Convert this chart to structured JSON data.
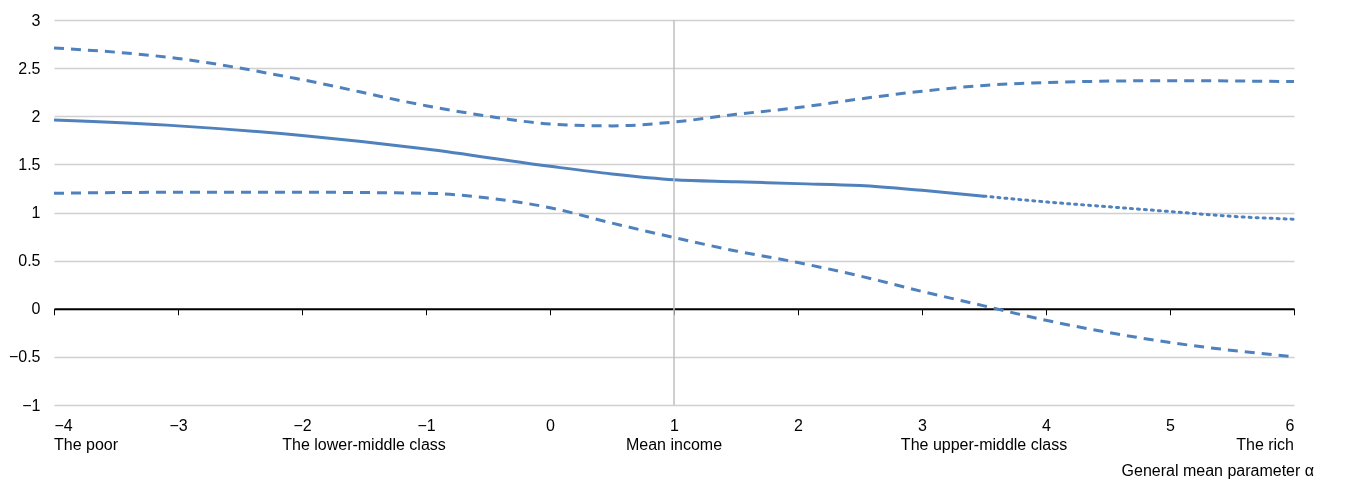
{
  "chart_data": {
    "type": "line",
    "xlabel": "General mean parameter α",
    "xlim": [
      -4,
      6
    ],
    "xticks": [
      -4,
      -3,
      -2,
      -1,
      0,
      1,
      2,
      3,
      4,
      5,
      6
    ],
    "ylim": [
      -1,
      3
    ],
    "yticks": [
      -1,
      -0.5,
      0,
      0.5,
      1,
      1.5,
      2,
      2.5,
      3
    ],
    "grid": "y",
    "marker": "none",
    "series": [
      {
        "color": "#4f81bd",
        "line_style": "solid",
        "x": [
          -4,
          -3,
          -2,
          -1,
          0,
          0.5,
          1,
          1.5,
          2,
          2.5,
          3,
          3.5
        ],
        "values": [
          1.96,
          1.9,
          1.8,
          1.66,
          1.48,
          1.4,
          1.34,
          1.32,
          1.3,
          1.28,
          1.23,
          1.17
        ]
      },
      {
        "color": "#4f81bd",
        "line_style": "dotted",
        "x": [
          3.5,
          4,
          4.5,
          5,
          5.5,
          6
        ],
        "values": [
          1.17,
          1.11,
          1.06,
          1.01,
          0.96,
          0.93
        ]
      },
      {
        "color": "#4f81bd",
        "line_style": "dashed",
        "x": [
          -4,
          -3,
          -2,
          -1,
          -0.5,
          0,
          0.5,
          1,
          1.5,
          2,
          2.5,
          3,
          3.5,
          4,
          5,
          6
        ],
        "values": [
          2.71,
          2.6,
          2.38,
          2.11,
          2.0,
          1.92,
          1.9,
          1.94,
          2.02,
          2.09,
          2.18,
          2.26,
          2.32,
          2.35,
          2.37,
          2.36
        ]
      },
      {
        "color": "#4f81bd",
        "line_style": "dashed",
        "x": [
          -4,
          -3,
          -2,
          -1,
          -0.5,
          0,
          0.5,
          1,
          1.5,
          2,
          2.5,
          3,
          3.5,
          4,
          5,
          6
        ],
        "values": [
          1.2,
          1.21,
          1.21,
          1.2,
          1.15,
          1.05,
          0.89,
          0.74,
          0.6,
          0.48,
          0.34,
          0.18,
          0.03,
          -0.12,
          -0.35,
          -0.5
        ]
      }
    ],
    "ref_lines": [
      {
        "axis": "x",
        "value": 1,
        "color": "#bfbfbf"
      }
    ],
    "annotations": [
      "The poor",
      "The lower-middle class",
      "Mean income",
      "The upper-middle class",
      "The rich"
    ]
  }
}
